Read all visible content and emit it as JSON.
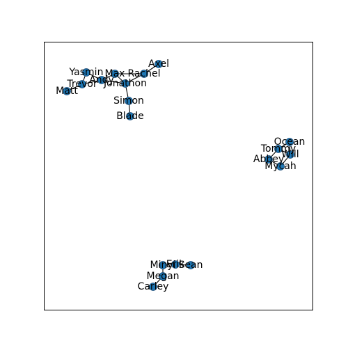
{
  "colors": {
    "node_fill": "#1f77b4",
    "edge": "#000000",
    "background": "#ffffff"
  },
  "graph": {
    "nodes": [
      {
        "id": "Axel",
        "label": "Axel"
      },
      {
        "id": "Rachel",
        "label": "Rachel"
      },
      {
        "id": "Max",
        "label": "Max"
      },
      {
        "id": "Yasmin",
        "label": "Yasmin"
      },
      {
        "id": "Andy",
        "label": "Andy"
      },
      {
        "id": "Trevor",
        "label": "Trevor"
      },
      {
        "id": "Jonathon",
        "label": "Jonathon"
      },
      {
        "id": "Matt",
        "label": "Matt"
      },
      {
        "id": "Simon",
        "label": "Simon"
      },
      {
        "id": "Blade",
        "label": "Blade"
      },
      {
        "id": "Ocean",
        "label": "Ocean"
      },
      {
        "id": "Tommy",
        "label": "Tommy"
      },
      {
        "id": "Will",
        "label": "Will"
      },
      {
        "id": "Abbey",
        "label": "Abbey"
      },
      {
        "id": "Mycah",
        "label": "Mycah"
      },
      {
        "id": "Minyi",
        "label": "Minyi"
      },
      {
        "id": "Erik",
        "label": "Erik"
      },
      {
        "id": "Sean",
        "label": "Sean"
      },
      {
        "id": "Megan",
        "label": "Megan"
      },
      {
        "id": "Carley",
        "label": "Carley"
      }
    ],
    "edges": [
      [
        "Axel",
        "Rachel"
      ],
      [
        "Rachel",
        "Max"
      ],
      [
        "Rachel",
        "Jonathon"
      ],
      [
        "Max",
        "Jonathon"
      ],
      [
        "Max",
        "Andy"
      ],
      [
        "Yasmin",
        "Andy"
      ],
      [
        "Yasmin",
        "Trevor"
      ],
      [
        "Andy",
        "Jonathon"
      ],
      [
        "Trevor",
        "Andy"
      ],
      [
        "Trevor",
        "Matt"
      ],
      [
        "Jonathon",
        "Simon"
      ],
      [
        "Simon",
        "Blade"
      ],
      [
        "Ocean",
        "Tommy"
      ],
      [
        "Ocean",
        "Will"
      ],
      [
        "Tommy",
        "Will"
      ],
      [
        "Tommy",
        "Abbey"
      ],
      [
        "Will",
        "Mycah"
      ],
      [
        "Abbey",
        "Mycah"
      ],
      [
        "Minyi",
        "Erik"
      ],
      [
        "Erik",
        "Sean"
      ],
      [
        "Minyi",
        "Megan"
      ],
      [
        "Megan",
        "Carley"
      ]
    ]
  }
}
